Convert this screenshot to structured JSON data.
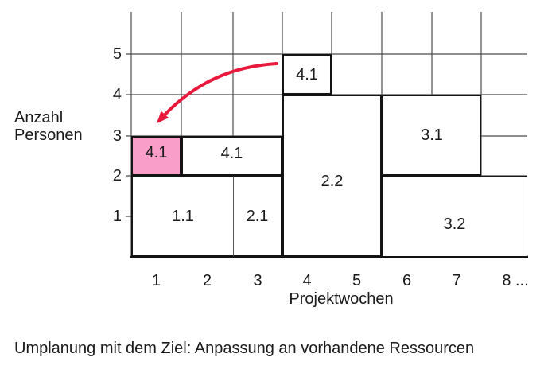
{
  "diagram": {
    "y_axis": {
      "title_lines": [
        "Anzahl",
        "Personen"
      ],
      "ticks": [
        "5",
        "4",
        "3",
        "2",
        "1"
      ]
    },
    "x_axis": {
      "title": "Projektwochen",
      "ticks": [
        "1",
        "2",
        "3",
        "4",
        "5",
        "6",
        "7",
        "8 ..."
      ]
    },
    "blocks": [
      {
        "label": "1.1",
        "week_start": 1,
        "week_end": 2,
        "person_start": 0,
        "person_end": 2,
        "highlighted": false
      },
      {
        "label": "2.1",
        "week_start": 3,
        "week_end": 3,
        "person_start": 0,
        "person_end": 2,
        "highlighted": false
      },
      {
        "label": "3.2",
        "week_start": 6,
        "week_end": 8,
        "person_start": 0,
        "person_end": 2,
        "highlighted": false
      },
      {
        "label": "3.1",
        "week_start": 6,
        "week_end": 7,
        "person_start": 2,
        "person_end": 4,
        "highlighted": false
      },
      {
        "label": "2.2",
        "week_start": 4,
        "week_end": 5,
        "person_start": 0,
        "person_end": 4,
        "highlighted": false
      },
      {
        "label": "4.1",
        "week_start": 2,
        "week_end": 3,
        "person_start": 2,
        "person_end": 3,
        "highlighted": false
      },
      {
        "label": "4.1",
        "week_start": 1,
        "week_end": 1,
        "person_start": 2,
        "person_end": 3,
        "highlighted": true
      },
      {
        "label": "4.1",
        "week_start": 4,
        "week_end": 4,
        "person_start": 4,
        "person_end": 5,
        "highlighted": false
      }
    ],
    "arrow": {
      "from_label": "4.1",
      "to_label": "4.1"
    },
    "colors": {
      "highlight_fill": "#f99ec8",
      "arrow": "#e8193c",
      "grid_line": "#4c4c4c",
      "block_border": "#141414",
      "axis": "#111111"
    }
  },
  "caption": "Umplanung mit dem Ziel: Anpassung an vorhandene Ressourcen"
}
